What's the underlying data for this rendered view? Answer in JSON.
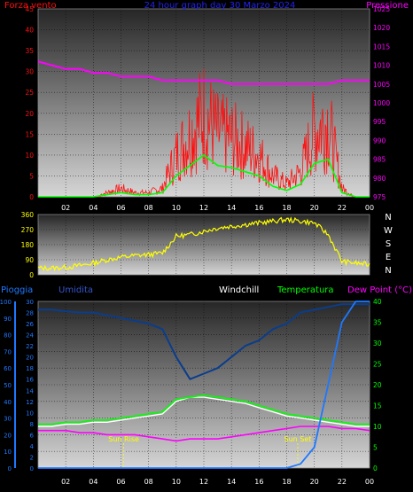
{
  "top": {
    "title": "24 hour graph day  30 Marzo 2024",
    "left_label": "Forza vento",
    "right_label": "Pressione",
    "y_left_ticks": [
      "0",
      "5",
      "10",
      "15",
      "20",
      "25",
      "30",
      "35",
      "40",
      "45"
    ],
    "y_right_ticks": [
      "975",
      "980",
      "985",
      "990",
      "995",
      "1000",
      "1005",
      "1010",
      "1015",
      "1020",
      "1025"
    ]
  },
  "mid": {
    "y_ticks": [
      "0",
      "90",
      "180",
      "270",
      "360"
    ],
    "compass": [
      "N",
      "W",
      "S",
      "E",
      "N"
    ]
  },
  "bottom": {
    "labels": {
      "pioggia": "Pioggia",
      "umidita": "Umidita",
      "windchill": "Windchill",
      "temperatura": "Temperatura",
      "dewpoint": "Dew Point (°C)"
    },
    "y_rain_ticks": [
      "0",
      "10",
      "20",
      "30",
      "40",
      "50",
      "60",
      "70",
      "80",
      "90",
      "100"
    ],
    "y_hum_ticks": [
      "0",
      "2",
      "4",
      "6",
      "8",
      "10",
      "12",
      "14",
      "16",
      "18",
      "20",
      "22",
      "24",
      "26",
      "28",
      "30"
    ],
    "y_temp_ticks": [
      "0",
      "5",
      "10",
      "15",
      "20",
      "25",
      "30",
      "35",
      "40"
    ],
    "sunrise": "Sun Rise",
    "sunset": "Sun Set"
  },
  "x_ticks": [
    "02",
    "04",
    "06",
    "08",
    "10",
    "12",
    "14",
    "16",
    "18",
    "20",
    "22",
    "00"
  ],
  "colors": {
    "wind": "#ff1010",
    "gust": "#00ff00",
    "pressure": "#ff00ff",
    "direction": "#ffff00",
    "rain": "#1e78ff",
    "humidity": "#0a3d8c",
    "windchill": "#ffffff",
    "temperature": "#00ff00",
    "dewpoint": "#ff00ff",
    "sun": "#ffff00"
  },
  "chart_data": [
    {
      "type": "line",
      "title": "24 hour graph day  30 Marzo 2024",
      "xlabel": "",
      "ylabel": "Forza vento",
      "y2label": "Pressione",
      "ylim": [
        0,
        45
      ],
      "y2lim": [
        975,
        1025
      ],
      "x": [
        0,
        1,
        2,
        3,
        4,
        5,
        6,
        7,
        8,
        9,
        10,
        11,
        12,
        13,
        14,
        15,
        16,
        17,
        18,
        19,
        20,
        21,
        22,
        23,
        24
      ],
      "series": [
        {
          "name": "Forza vento",
          "axis": "y",
          "values": [
            0,
            0,
            0,
            0,
            0,
            1,
            2,
            1,
            1,
            2,
            10,
            15,
            20,
            15,
            14,
            12,
            10,
            5,
            3,
            6,
            16,
            18,
            2,
            0,
            0
          ]
        },
        {
          "name": "Pressione",
          "axis": "y2",
          "values": [
            1011,
            1010,
            1009,
            1009,
            1008,
            1008,
            1007,
            1007,
            1007,
            1006,
            1006,
            1006,
            1006,
            1006,
            1005,
            1005,
            1005,
            1005,
            1005,
            1005,
            1005,
            1005,
            1006,
            1006,
            1006
          ]
        }
      ]
    },
    {
      "type": "line",
      "ylim": [
        0,
        360
      ],
      "x": [
        0,
        1,
        2,
        3,
        4,
        5,
        6,
        7,
        8,
        9,
        10,
        11,
        12,
        13,
        14,
        15,
        16,
        17,
        18,
        19,
        20,
        21,
        22,
        23,
        24
      ],
      "series": [
        {
          "values": [
            40,
            40,
            45,
            55,
            70,
            90,
            105,
            115,
            120,
            130,
            230,
            240,
            260,
            280,
            290,
            300,
            310,
            320,
            330,
            320,
            310,
            240,
            80,
            70,
            60
          ]
        }
      ]
    },
    {
      "type": "line",
      "xlabel": "",
      "ylabel": "Pioggia",
      "ylim": [
        0,
        40
      ],
      "x": [
        0,
        1,
        2,
        3,
        4,
        5,
        6,
        7,
        8,
        9,
        10,
        11,
        12,
        13,
        14,
        15,
        16,
        17,
        18,
        19,
        20,
        21,
        22,
        23,
        24
      ],
      "series": [
        {
          "name": "Pioggia",
          "values": [
            0,
            0,
            0,
            0,
            0,
            0,
            0,
            0,
            0,
            0,
            0,
            0,
            0,
            0,
            0,
            0,
            0,
            0,
            0,
            1,
            5,
            20,
            35,
            40,
            40
          ]
        },
        {
          "name": "Umidita",
          "values": [
            28.5,
            28.5,
            28.2,
            28,
            28,
            27.5,
            27,
            26.5,
            26,
            25,
            20,
            16,
            17,
            18,
            20,
            22,
            23,
            25,
            26,
            28,
            28.5,
            29,
            29.5,
            29.5,
            29.5
          ]
        },
        {
          "name": "Windchill",
          "values": [
            10,
            10,
            10.5,
            10.5,
            11,
            11,
            11.5,
            12,
            12.5,
            13,
            16,
            17,
            17,
            16.5,
            16,
            15.5,
            14.5,
            13.5,
            12.5,
            12,
            11.5,
            11,
            10.5,
            10,
            10
          ]
        },
        {
          "name": "Temperatura",
          "values": [
            10.5,
            10.5,
            11,
            11,
            11.5,
            11.5,
            12,
            12.5,
            13,
            13.5,
            16.5,
            17,
            17.5,
            17,
            16.5,
            16,
            15,
            14,
            13,
            12.5,
            12,
            11.5,
            11,
            10.5,
            10.5
          ]
        },
        {
          "name": "Dew Point (°C)",
          "values": [
            9,
            9,
            9,
            8.5,
            8.5,
            8,
            8,
            8,
            7.5,
            7,
            6.5,
            7,
            7,
            7,
            7.5,
            8,
            8.5,
            9,
            9.5,
            10,
            10,
            10,
            9.5,
            9.5,
            9
          ]
        }
      ]
    }
  ]
}
